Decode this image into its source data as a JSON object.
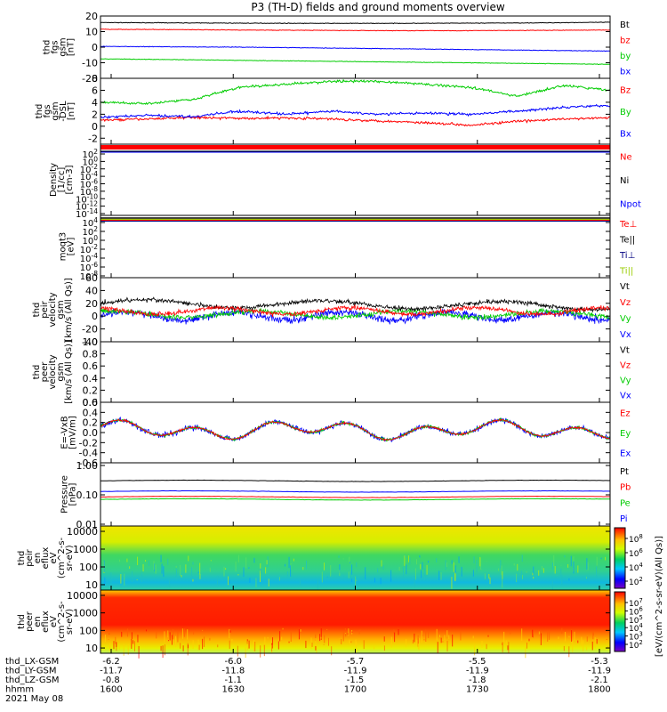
{
  "title": "P3 (TH-D) fields and ground moments overview",
  "time_axis": {
    "ticks": [
      "1600",
      "1630",
      "1700",
      "1730",
      "1800"
    ],
    "rows": [
      {
        "label": "thd_LX-GSM",
        "values": [
          "-6.2",
          "-6.0",
          "-5.7",
          "-5.5",
          "-5.3"
        ]
      },
      {
        "label": "thd_LY-GSM",
        "values": [
          "-11.7",
          "-11.8",
          "-11.9",
          "-11.9",
          "-11.9"
        ]
      },
      {
        "label": "thd_LZ-GSM",
        "values": [
          "-0.8",
          "-1.1",
          "-1.5",
          "-1.8",
          "-2.1"
        ]
      },
      {
        "label": "hhmm",
        "values": []
      },
      {
        "label": "2021 May 08",
        "values": []
      }
    ]
  },
  "colors": {
    "black": "#000000",
    "red": "#ff0000",
    "green": "#00cc00",
    "blue": "#0000ff",
    "yellowgreen": "#99cc00",
    "navy": "#000080"
  },
  "chart_data": [
    {
      "id": "fgs",
      "type": "line",
      "ylabel": [
        "thd",
        "fgs",
        "gsm",
        "[nT]"
      ],
      "ylim": [
        -20,
        20
      ],
      "ticks": [
        -20,
        -10,
        0,
        10,
        20
      ],
      "series": [
        {
          "name": "Bt",
          "color": "#000000",
          "values": [
            15.8,
            15.6,
            15.4,
            15.3,
            15.3,
            15.4,
            15.6,
            16.0
          ]
        },
        {
          "name": "bz",
          "color": "#ff0000",
          "values": [
            11.5,
            11.3,
            11.0,
            10.8,
            10.6,
            10.6,
            10.8,
            11.0
          ]
        },
        {
          "name": "by",
          "color": "#00cc00",
          "values": [
            -7.5,
            -8.0,
            -8.5,
            -9.0,
            -9.5,
            -10.0,
            -10.5,
            -11.0
          ]
        },
        {
          "name": "bx",
          "color": "#0000ff",
          "values": [
            0.5,
            0.2,
            0.0,
            -0.5,
            -1.0,
            -1.5,
            -2.0,
            -2.5
          ]
        }
      ]
    },
    {
      "id": "fgs_dsl",
      "type": "line",
      "ylabel": [
        "thd",
        "fgs",
        "gsm",
        "-DSL",
        "[nT]"
      ],
      "ylim": [
        -3,
        8
      ],
      "ticks": [
        -2,
        0,
        2,
        4,
        6,
        8
      ],
      "series": [
        {
          "name": "Bz",
          "color": "#ff0000",
          "values": [
            1.0,
            1.2,
            1.5,
            1.3,
            1.4,
            1.2,
            0.9,
            0.6,
            0.2,
            0.8,
            1.2,
            1.4
          ]
        },
        {
          "name": "By",
          "color": "#00cc00",
          "values": [
            4.0,
            3.8,
            4.5,
            6.5,
            7.0,
            7.5,
            7.5,
            7.0,
            6.5,
            5.0,
            6.8,
            6.0
          ]
        },
        {
          "name": "Bx",
          "color": "#0000ff",
          "values": [
            1.5,
            1.8,
            1.6,
            2.5,
            2.0,
            2.5,
            2.0,
            2.2,
            2.0,
            2.5,
            3.2,
            3.5
          ]
        }
      ]
    },
    {
      "id": "density",
      "type": "line",
      "ylabel": [
        "Density",
        "[1/cc]",
        "[cm-3]"
      ],
      "ylim_log": [
        -14,
        3
      ],
      "ticks": [
        "10^2",
        "10^0",
        "10^-2",
        "10^-4",
        "10^-6",
        "10^-8",
        "10^-10",
        "10^-12",
        "10^-14"
      ],
      "series": [
        {
          "name": "Ne",
          "color": "#ff0000"
        },
        {
          "name": "Ni",
          "color": "#000000"
        },
        {
          "name": "Npot",
          "color": "#0000ff"
        }
      ]
    },
    {
      "id": "temp",
      "type": "line",
      "ylabel": [
        "moqt3",
        "[eV]"
      ],
      "ylim_log": [
        -8,
        4
      ],
      "ticks": [
        "10^4",
        "10^2",
        "10^0",
        "10^-2",
        "10^-4",
        "10^-6",
        "10^-8"
      ],
      "series": [
        {
          "name": "Te⊥",
          "color": "#ff0000"
        },
        {
          "name": "Te||",
          "color": "#000000"
        },
        {
          "name": "Ti⊥",
          "color": "#000080"
        },
        {
          "name": "Ti||",
          "color": "#99cc00"
        }
      ]
    },
    {
      "id": "peir_vel",
      "type": "line",
      "ylabel": [
        "thd",
        "peir",
        "velocity",
        "gsm",
        "[km/s (All Qs)]"
      ],
      "ylim": [
        -40,
        60
      ],
      "ticks": [
        -40,
        -20,
        0,
        20,
        40,
        60
      ],
      "series": [
        {
          "name": "Vt",
          "color": "#000000"
        },
        {
          "name": "Vz",
          "color": "#ff0000"
        },
        {
          "name": "Vy",
          "color": "#00cc00"
        },
        {
          "name": "Vx",
          "color": "#0000ff"
        }
      ]
    },
    {
      "id": "peer_vel",
      "type": "line",
      "ylabel": [
        "thd",
        "peer",
        "velocity",
        "gsm",
        "[km/s (All Qs)]"
      ],
      "ylim": [
        0,
        1.0
      ],
      "ticks": [
        0.0,
        0.2,
        0.4,
        0.6,
        0.8,
        1.0
      ],
      "series": [
        {
          "name": "Vt",
          "color": "#000000"
        },
        {
          "name": "Vz",
          "color": "#ff0000"
        },
        {
          "name": "Vy",
          "color": "#00cc00"
        },
        {
          "name": "Vx",
          "color": "#0000ff"
        }
      ]
    },
    {
      "id": "efield",
      "type": "line",
      "ylabel": [
        "E=-VxB",
        "[mV/m]"
      ],
      "ylim": [
        -0.6,
        0.6
      ],
      "ticks": [
        -0.6,
        -0.4,
        -0.2,
        0.0,
        0.2,
        0.4,
        0.6
      ],
      "series": [
        {
          "name": "Ez",
          "color": "#ff0000"
        },
        {
          "name": "Ey",
          "color": "#00cc00"
        },
        {
          "name": "Ex",
          "color": "#0000ff"
        }
      ]
    },
    {
      "id": "pressure",
      "type": "line",
      "ylabel": [
        "Pressure",
        "[nPa]"
      ],
      "ylim_log": [
        0.01,
        1.0
      ],
      "ticks": [
        "1.00",
        "0.10",
        "0.01"
      ],
      "series": [
        {
          "name": "Pt",
          "color": "#000000",
          "value": 0.3
        },
        {
          "name": "Pb",
          "color": "#ff0000",
          "value": 0.085
        },
        {
          "name": "Pe",
          "color": "#00cc00",
          "value": 0.07
        },
        {
          "name": "Pi",
          "color": "#0000ff",
          "value": 0.13
        }
      ]
    },
    {
      "id": "peir_spec",
      "type": "heatmap",
      "ylabel": [
        "thd",
        "peir",
        "en",
        "eflux",
        "eV",
        "(cm^2-s-",
        "sr-eV)"
      ],
      "ylim_log": [
        5,
        20000
      ],
      "ticks": [
        "10000",
        "1000",
        "100",
        "10"
      ],
      "colorbar": {
        "label": "[eV/(cm^2-s-sr-eV)(All Qs)]",
        "ticks": [
          "10^8",
          "10^6",
          "10^4",
          "10^2"
        ]
      }
    },
    {
      "id": "peer_spec",
      "type": "heatmap",
      "ylabel": [
        "thd",
        "peer",
        "en",
        "eflux",
        "eV",
        "(cm^2-s-",
        "sr-eV)"
      ],
      "ylim_log": [
        5,
        20000
      ],
      "ticks": [
        "10000",
        "1000",
        "100",
        "10"
      ],
      "colorbar": {
        "label": "[eV/(cm^2-s-sr-eV)(All Qs)]",
        "ticks": [
          "10^7",
          "10^6",
          "10^5",
          "10^4",
          "10^3",
          "10^2"
        ]
      }
    }
  ]
}
